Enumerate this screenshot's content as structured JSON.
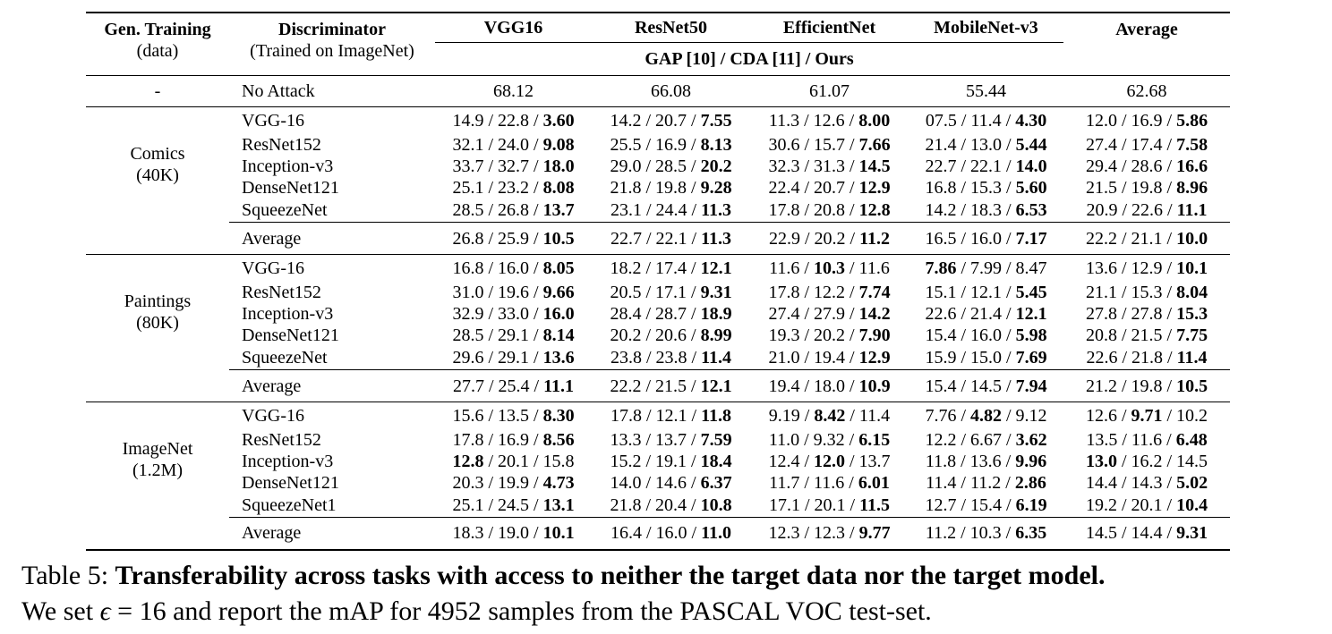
{
  "table": {
    "header": {
      "gen_training": "Gen. Training",
      "gen_training_sub": "(data)",
      "discriminator": "Discriminator",
      "discriminator_sub": "(Trained on ImageNet)",
      "models": [
        "VGG16",
        "ResNet50",
        "EfficientNet",
        "MobileNet-v3",
        "Average"
      ],
      "metric_label": "GAP [10] / CDA [11] / Ours"
    },
    "no_attack": {
      "gen": "-",
      "label": "No Attack",
      "values": [
        "68.12",
        "66.08",
        "61.07",
        "55.44",
        "62.68"
      ]
    },
    "sections": [
      {
        "name": "Comics",
        "size": "(40K)",
        "rows": [
          {
            "label": "VGG-16",
            "cells": [
              [
                "14.9 / 22.8 / ",
                "3.60",
                "",
                ""
              ],
              [
                "14.2 / 20.7 / ",
                "7.55",
                "",
                ""
              ],
              [
                "11.3 / 12.6 / ",
                "8.00",
                "",
                ""
              ],
              [
                "07.5 / 11.4 / ",
                "4.30",
                "",
                ""
              ],
              [
                "12.0 / 16.9 / ",
                "5.86",
                "",
                ""
              ]
            ]
          },
          {
            "label": "ResNet152",
            "cells": [
              [
                "32.1 / 24.0 / ",
                "9.08",
                "",
                ""
              ],
              [
                "25.5 / 16.9 / ",
                "8.13",
                "",
                ""
              ],
              [
                "30.6 / 15.7 / ",
                "7.66",
                "",
                ""
              ],
              [
                "21.4 / 13.0 / ",
                "5.44",
                "",
                ""
              ],
              [
                "27.4 / 17.4 / ",
                "7.58",
                "",
                ""
              ]
            ]
          },
          {
            "label": "Inception-v3",
            "cells": [
              [
                "33.7 / 32.7 / ",
                "18.0",
                "",
                ""
              ],
              [
                "29.0 / 28.5 / ",
                "20.2",
                "",
                ""
              ],
              [
                "32.3 / 31.3 / ",
                "14.5",
                "",
                ""
              ],
              [
                "22.7 / 22.1 / ",
                "14.0",
                "",
                ""
              ],
              [
                "29.4 / 28.6 / ",
                "16.6",
                "",
                ""
              ]
            ]
          },
          {
            "label": "DenseNet121",
            "cells": [
              [
                "25.1 / 23.2 / ",
                "8.08",
                "",
                ""
              ],
              [
                "21.8 / 19.8 / ",
                "9.28",
                "",
                ""
              ],
              [
                "22.4 / 20.7 / ",
                "12.9",
                "",
                ""
              ],
              [
                "16.8 / 15.3 / ",
                "5.60",
                "",
                ""
              ],
              [
                "21.5 / 19.8 / ",
                "8.96",
                "",
                ""
              ]
            ]
          },
          {
            "label": "SqueezeNet",
            "cells": [
              [
                "28.5 / 26.8 / ",
                "13.7",
                "",
                ""
              ],
              [
                "23.1 / 24.4 / ",
                "11.3",
                "",
                ""
              ],
              [
                "17.8 / 20.8 / ",
                "12.8",
                "",
                ""
              ],
              [
                "14.2 / 18.3 / ",
                "6.53",
                "",
                ""
              ],
              [
                "20.9 / 22.6 / ",
                "11.1",
                "",
                ""
              ]
            ]
          }
        ],
        "average": {
          "label": "Average",
          "cells": [
            [
              "26.8 / 25.9 / ",
              "10.5",
              "",
              ""
            ],
            [
              "22.7 / 22.1 / ",
              "11.3",
              "",
              ""
            ],
            [
              "22.9 / 20.2 / ",
              "11.2",
              "",
              ""
            ],
            [
              "16.5 / 16.0 / ",
              "7.17",
              "",
              ""
            ],
            [
              "22.2 / 21.1 / ",
              "10.0",
              "",
              ""
            ]
          ]
        }
      },
      {
        "name": "Paintings",
        "size": "(80K)",
        "rows": [
          {
            "label": "VGG-16",
            "cells": [
              [
                "16.8 / 16.0 / ",
                "8.05",
                "",
                ""
              ],
              [
                "18.2 / 17.4 / ",
                "12.1",
                "",
                ""
              ],
              [
                "11.6 / ",
                "10.3",
                " / 11.6",
                ""
              ],
              [
                "",
                "7.86",
                " / 7.99 / 8.47",
                ""
              ],
              [
                "13.6 / 12.9 / ",
                "10.1",
                "",
                ""
              ]
            ]
          },
          {
            "label": "ResNet152",
            "cells": [
              [
                "31.0 / 19.6 / ",
                "9.66",
                "",
                ""
              ],
              [
                "20.5 / 17.1 / ",
                "9.31",
                "",
                ""
              ],
              [
                "17.8 / 12.2 / ",
                "7.74",
                "",
                ""
              ],
              [
                "15.1 / 12.1 / ",
                "5.45",
                "",
                ""
              ],
              [
                "21.1 / 15.3 / ",
                "8.04",
                "",
                ""
              ]
            ]
          },
          {
            "label": "Inception-v3",
            "cells": [
              [
                "32.9 / 33.0 / ",
                "16.0",
                "",
                ""
              ],
              [
                "28.4 / 28.7 / ",
                "18.9",
                "",
                ""
              ],
              [
                "27.4 / 27.9 / ",
                "14.2",
                "",
                ""
              ],
              [
                "22.6 / 21.4 / ",
                "12.1",
                "",
                ""
              ],
              [
                "27.8 / 27.8 / ",
                "15.3",
                "",
                ""
              ]
            ]
          },
          {
            "label": "DenseNet121",
            "cells": [
              [
                "28.5 / 29.1 / ",
                "8.14",
                "",
                ""
              ],
              [
                "20.2 / 20.6 / ",
                "8.99",
                "",
                ""
              ],
              [
                "19.3 / 20.2 / ",
                "7.90",
                "",
                ""
              ],
              [
                "15.4 / 16.0 / ",
                "5.98",
                "",
                ""
              ],
              [
                "20.8 / 21.5 / ",
                "7.75",
                "",
                ""
              ]
            ]
          },
          {
            "label": "SqueezeNet",
            "cells": [
              [
                "29.6 / 29.1 / ",
                "13.6",
                "",
                ""
              ],
              [
                "23.8 / 23.8 / ",
                "11.4",
                "",
                ""
              ],
              [
                "21.0 / 19.4 / ",
                "12.9",
                "",
                ""
              ],
              [
                "15.9 / 15.0 / ",
                "7.69",
                "",
                ""
              ],
              [
                "22.6 / 21.8 / ",
                "11.4",
                "",
                ""
              ]
            ]
          }
        ],
        "average": {
          "label": "Average",
          "cells": [
            [
              "27.7 / 25.4 / ",
              "11.1",
              "",
              ""
            ],
            [
              "22.2 / 21.5 / ",
              "12.1",
              "",
              ""
            ],
            [
              "19.4 / 18.0 / ",
              "10.9",
              "",
              ""
            ],
            [
              "15.4 / 14.5 / ",
              "7.94",
              "",
              ""
            ],
            [
              "21.2 / 19.8 / ",
              "10.5",
              "",
              ""
            ]
          ]
        }
      },
      {
        "name": "ImageNet",
        "size": "(1.2M)",
        "rows": [
          {
            "label": "VGG-16",
            "cells": [
              [
                "15.6 / 13.5 / ",
                "8.30",
                "",
                ""
              ],
              [
                "17.8 / 12.1 / ",
                "11.8",
                "",
                ""
              ],
              [
                "9.19 / ",
                "8.42",
                " / 11.4",
                ""
              ],
              [
                "7.76 / ",
                "4.82",
                " / 9.12",
                ""
              ],
              [
                "12.6 / ",
                "9.71",
                " / 10.2",
                ""
              ]
            ]
          },
          {
            "label": "ResNet152",
            "cells": [
              [
                "17.8 / 16.9 / ",
                "8.56",
                "",
                ""
              ],
              [
                "13.3 / 13.7 / ",
                "7.59",
                "",
                ""
              ],
              [
                "11.0 / 9.32 / ",
                "6.15",
                "",
                ""
              ],
              [
                "12.2 / 6.67 / ",
                "3.62",
                "",
                ""
              ],
              [
                "13.5 / 11.6 / ",
                "6.48",
                "",
                ""
              ]
            ]
          },
          {
            "label": "Inception-v3",
            "cells": [
              [
                "",
                "12.8",
                " / 20.1 / 15.8",
                ""
              ],
              [
                "15.2 / 19.1 / ",
                "18.4",
                "",
                ""
              ],
              [
                "12.4 / ",
                "12.0",
                " / 13.7",
                ""
              ],
              [
                "11.8 / 13.6 / ",
                "9.96",
                "",
                ""
              ],
              [
                "",
                "13.0",
                " / 16.2 / 14.5",
                ""
              ]
            ]
          },
          {
            "label": "DenseNet121",
            "cells": [
              [
                "20.3 / 19.9 / ",
                "4.73",
                "",
                ""
              ],
              [
                "14.0 / 14.6 / ",
                "6.37",
                "",
                ""
              ],
              [
                "11.7 / 11.6 / ",
                "6.01",
                "",
                ""
              ],
              [
                "11.4 / 11.2 / ",
                "2.86",
                "",
                ""
              ],
              [
                "14.4 / 14.3 / ",
                "5.02",
                "",
                ""
              ]
            ]
          },
          {
            "label": "SqueezeNet1",
            "cells": [
              [
                "25.1 / 24.5 / ",
                "13.1",
                "",
                ""
              ],
              [
                "21.8 / 20.4 / ",
                "10.8",
                "",
                ""
              ],
              [
                "17.1 / 20.1 / ",
                "11.5",
                "",
                ""
              ],
              [
                "12.7 / 15.4 / ",
                "6.19",
                "",
                ""
              ],
              [
                "19.2 / 20.1 / ",
                "10.4",
                "",
                ""
              ]
            ]
          }
        ],
        "average": {
          "label": "Average",
          "cells": [
            [
              "18.3 / 19.0 / ",
              "10.1",
              "",
              ""
            ],
            [
              "16.4 / 16.0 / ",
              "11.0",
              "",
              ""
            ],
            [
              "12.3 / 12.3 / ",
              "9.77",
              "",
              ""
            ],
            [
              "11.2 / 10.3 / ",
              "6.35",
              "",
              ""
            ],
            [
              "14.5 / 14.4 / ",
              "9.31",
              "",
              ""
            ]
          ]
        }
      }
    ]
  },
  "caption": {
    "label": "Table 5: ",
    "title": "Transferability across tasks with access to neither the target data nor the target model.",
    "line2_pre": "We set ",
    "epsilon": "ϵ",
    "line2_eq": " = 16 and report the mAP for 4952 samples from the PASCAL VOC test-set."
  }
}
